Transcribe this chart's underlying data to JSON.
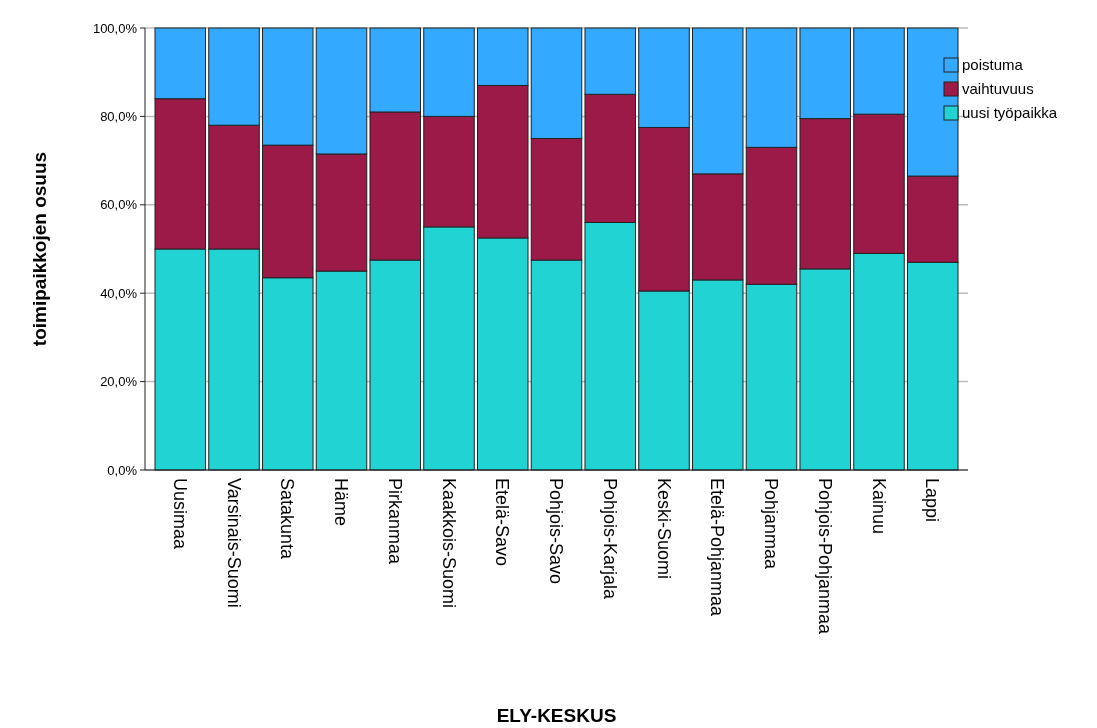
{
  "chart_data": {
    "type": "bar",
    "stacked": true,
    "xlabel": "ELY-KESKUS",
    "ylabel": "toimipaikkojen osuus",
    "categories": [
      "Uusimaa",
      "Varsinais-Suomi",
      "Satakunta",
      "Häme",
      "Pirkanmaa",
      "Kaakkois-Suomi",
      "Etelä-Savo",
      "Pohjois-Savo",
      "Pohjois-Karjala",
      "Keski-Suomi",
      "Etelä-Pohjanmaa",
      "Pohjanmaa",
      "Pohjois-Pohjanmaa",
      "Kainuu",
      "Lappi"
    ],
    "series": [
      {
        "name": "uusi työpaikka",
        "color": "#21d3d3",
        "values": [
          50,
          50,
          43.5,
          45,
          47.5,
          55,
          52.5,
          47.5,
          56,
          40.5,
          43,
          42,
          45.5,
          49,
          47
        ]
      },
      {
        "name": "vaihtuvuus",
        "color": "#9c1a48",
        "values": [
          34,
          28,
          30,
          26.5,
          33.5,
          25,
          34.5,
          27.5,
          29,
          37,
          24,
          31,
          34,
          31.5,
          19.5
        ]
      },
      {
        "name": "poistuma",
        "color": "#33aaff",
        "values": [
          16,
          22,
          26.5,
          28.5,
          19,
          20,
          13,
          25,
          15,
          22.5,
          33,
          27,
          20.5,
          19.5,
          33.5
        ]
      }
    ],
    "ylim": [
      0,
      100
    ],
    "yticks": [
      {
        "value": 0,
        "label": "0,0%"
      },
      {
        "value": 20,
        "label": "20,0%"
      },
      {
        "value": 40,
        "label": "40,0%"
      },
      {
        "value": 60,
        "label": "60,0%"
      },
      {
        "value": 80,
        "label": "80,0%"
      },
      {
        "value": 100,
        "label": "100,0%"
      }
    ],
    "grid": "y",
    "legend": "right"
  }
}
